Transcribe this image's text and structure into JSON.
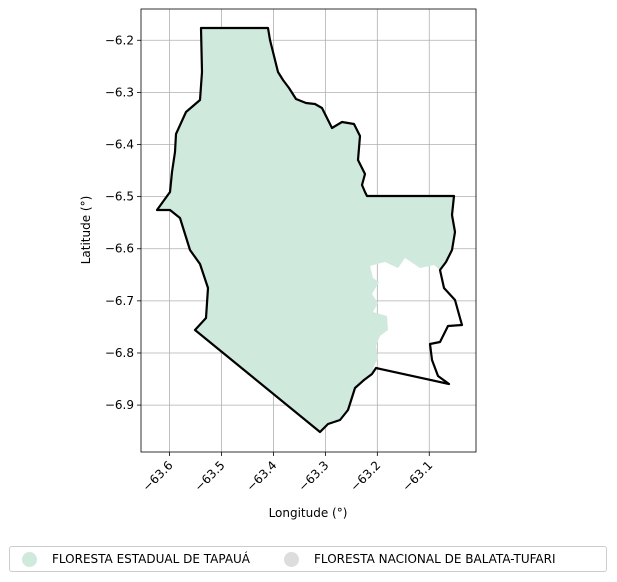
{
  "chart_data": {
    "type": "map",
    "xlabel": "Longitude (°)",
    "ylabel": "Latitude (°)",
    "xlim": [
      -63.655,
      -63.01
    ],
    "ylim": [
      -6.99,
      -6.14
    ],
    "xticks": [
      -63.6,
      -63.5,
      -63.4,
      -63.3,
      -63.2,
      -63.1
    ],
    "yticks": [
      -6.2,
      -6.3,
      -6.4,
      -6.5,
      -6.6,
      -6.7,
      -6.8,
      -6.9
    ],
    "grid": true,
    "legend_position": "bottom",
    "series": [
      {
        "name": "FLORESTA ESTADUAL DE TAPAUÁ",
        "color": "#cfeadd"
      },
      {
        "name": "FLORESTA NACIONAL DE BALATA-TUFARI",
        "color": "#dddddd"
      }
    ]
  }
}
